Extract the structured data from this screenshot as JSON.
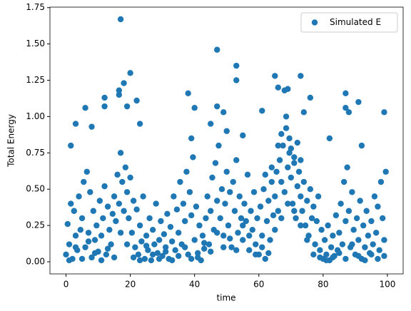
{
  "chart_data": {
    "type": "scatter",
    "xlabel": "time",
    "ylabel": "Total Energy",
    "xlim": [
      -5,
      104.9
    ],
    "ylim": [
      -0.0835,
      1.7535
    ],
    "xticks": [
      0,
      20,
      40,
      60,
      80,
      100
    ],
    "yticks": [
      {
        "value": 0,
        "label": "0.00"
      },
      {
        "value": 0.25,
        "label": "0.25"
      },
      {
        "value": 0.5,
        "label": "0.50"
      },
      {
        "value": 0.75,
        "label": "0.75"
      },
      {
        "value": 1,
        "label": "1.00"
      },
      {
        "value": 1.25,
        "label": "1.25"
      },
      {
        "value": 1.5,
        "label": "1.50"
      },
      {
        "value": 1.75,
        "label": "1.75"
      }
    ],
    "legend": "upper right",
    "series": [
      {
        "name": "Simulated E",
        "color": "#1f77b4",
        "x": [
          0,
          0.5,
          1,
          1.5,
          2,
          2.5,
          3,
          3.5,
          4,
          4.5,
          5,
          5.5,
          6,
          6.5,
          7,
          7.5,
          8,
          8.5,
          9,
          9.5,
          10,
          10.5,
          11,
          11.5,
          12,
          12.5,
          13,
          13.5,
          14,
          14.5,
          15,
          15.5,
          16,
          16.5,
          17,
          17.5,
          18,
          18.5,
          19,
          19.5,
          20,
          20.5,
          21,
          21.5,
          22,
          22.5,
          23,
          23.5,
          24,
          24.5,
          25,
          25.5,
          26,
          26.5,
          27,
          27.5,
          28,
          28.5,
          29,
          29.5,
          30,
          30.5,
          31,
          31.5,
          32,
          32.5,
          33,
          33.5,
          34,
          34.5,
          35,
          35.5,
          36,
          36.5,
          37,
          37.5,
          38,
          38.5,
          39,
          39.5,
          40,
          40.5,
          41,
          41.5,
          42,
          42.5,
          43,
          43.5,
          44,
          44.5,
          45,
          45.5,
          46,
          46.5,
          47,
          47.5,
          48,
          48.5,
          49,
          49.5,
          50,
          50.5,
          51,
          51.5,
          52,
          52.5,
          53,
          53.5,
          54,
          54.5,
          55,
          55.5,
          56,
          56.5,
          57,
          57.5,
          58,
          58.5,
          59,
          59.5,
          60,
          60.5,
          61,
          61.5,
          62,
          62.5,
          63,
          63.5,
          64,
          64.5,
          65,
          65.5,
          66,
          66.5,
          67,
          67.5,
          68,
          68.5,
          69,
          69.5,
          70,
          70.5,
          71,
          71.5,
          72,
          72.5,
          73,
          73.5,
          74,
          74.5,
          75,
          75.5,
          76,
          76.5,
          77,
          77.5,
          78,
          78.5,
          79,
          79.5,
          80,
          80.5,
          81,
          81.5,
          82,
          82.5,
          83,
          83.5,
          84,
          84.5,
          85,
          85.5,
          86,
          86.5,
          87,
          87.5,
          88,
          88.5,
          89,
          89.5,
          90,
          90.5,
          91,
          91.5,
          92,
          92.5,
          93,
          93.5,
          94,
          94.5,
          95,
          95.5,
          96,
          96.5,
          97,
          97.5,
          98,
          98.5,
          99,
          99.5,
          17,
          47,
          53,
          53,
          20,
          18,
          16.5,
          16.5,
          73,
          65,
          66,
          69,
          68,
          76,
          74,
          12,
          12,
          19,
          22,
          6,
          38,
          40,
          47,
          49,
          61,
          87,
          87,
          91,
          88,
          99,
          3,
          23,
          45,
          50,
          55,
          82,
          92,
          8,
          1.5,
          39,
          1,
          3,
          5,
          7,
          9,
          11,
          13,
          15,
          17,
          19,
          21,
          23,
          25,
          27,
          29,
          31,
          33,
          35,
          37,
          39,
          41,
          43,
          45,
          47,
          49,
          51,
          53,
          55,
          57,
          59,
          61,
          63,
          65,
          67,
          69,
          71,
          73,
          75,
          77,
          79,
          81,
          83,
          85,
          87,
          89,
          91,
          93,
          95,
          97,
          99,
          68.5,
          69.5,
          70,
          71,
          72,
          67,
          66,
          73,
          64,
          62
        ],
        "values": [
          0.05,
          0.26,
          0.12,
          0.4,
          0.02,
          0.35,
          0.18,
          0.08,
          0.45,
          0.22,
          0.3,
          0.55,
          0.1,
          0.62,
          0.2,
          0.48,
          0.03,
          0.35,
          0.15,
          0.25,
          0.07,
          0.42,
          0.18,
          0.3,
          0.52,
          0.05,
          0.38,
          0.22,
          0.12,
          0.33,
          0.45,
          0.28,
          0.6,
          0.4,
          0.75,
          0.55,
          0.35,
          0.65,
          0.48,
          0.3,
          0.58,
          0.2,
          0.42,
          0.1,
          0.36,
          0.05,
          0.25,
          0.14,
          0.45,
          0.02,
          0.18,
          0.08,
          0.3,
          0.01,
          0.22,
          0.12,
          0.4,
          0.06,
          0.15,
          0.28,
          0.04,
          0.19,
          0.1,
          0.33,
          0.02,
          0.24,
          0.14,
          0.45,
          0.08,
          0.36,
          0.2,
          0.55,
          0.12,
          0.4,
          0.28,
          0.62,
          0.05,
          0.48,
          0.32,
          0.72,
          0.15,
          0.38,
          0.06,
          0.25,
          0.01,
          0.18,
          0.09,
          0.3,
          0.45,
          0.12,
          0.35,
          0.58,
          0.22,
          0.68,
          0.42,
          0.8,
          0.3,
          0.5,
          0.18,
          0.4,
          0.62,
          0.25,
          0.48,
          0.1,
          0.55,
          0.35,
          0.7,
          0.2,
          0.45,
          0.3,
          0.15,
          0.4,
          0.28,
          0.6,
          0.08,
          0.35,
          0.22,
          0.48,
          0.12,
          0.3,
          0.05,
          0.38,
          0.18,
          0.5,
          0.02,
          0.28,
          0.42,
          0.15,
          0.55,
          0.32,
          0.45,
          0.62,
          0.35,
          0.7,
          0.55,
          0.8,
          0.48,
          0.92,
          0.65,
          0.75,
          0.58,
          0.4,
          0.68,
          0.3,
          0.52,
          0.62,
          0.45,
          0.35,
          0.55,
          0.25,
          0.42,
          0.18,
          0.5,
          0.3,
          0.38,
          0.12,
          0.28,
          0.45,
          0.08,
          0.22,
          0.02,
          0.15,
          0.05,
          0.25,
          0.01,
          0.1,
          0.18,
          0.04,
          0.32,
          0.08,
          0.2,
          0.4,
          0.12,
          0.55,
          0.28,
          0.65,
          0.35,
          0.1,
          0.48,
          0.22,
          0.05,
          0.3,
          0.15,
          0.42,
          0.02,
          0.25,
          0.1,
          0.35,
          0.18,
          0.06,
          0.28,
          0.12,
          0.45,
          0.2,
          0.38,
          0.08,
          0.55,
          0.3,
          0.15,
          0.62,
          1.67,
          1.46,
          1.35,
          1.25,
          1.3,
          1.23,
          1.18,
          1.15,
          1.28,
          1.28,
          1.2,
          1.19,
          1.18,
          1.13,
          1.03,
          1.13,
          1.07,
          1.07,
          1.11,
          1.06,
          1.16,
          1.06,
          1.07,
          1.03,
          1.04,
          1.16,
          1.06,
          1.1,
          1.03,
          1.03,
          0.95,
          0.95,
          0.95,
          0.9,
          0.87,
          0.85,
          0.8,
          0.93,
          0.8,
          0.85,
          0.01,
          0.1,
          0.02,
          0.14,
          0.06,
          0.01,
          0.09,
          0.03,
          0.2,
          0.12,
          0.03,
          0.01,
          0.11,
          0.05,
          0.02,
          0.07,
          0.01,
          0.04,
          0.1,
          0.02,
          0.03,
          0.13,
          0.07,
          0.2,
          0.1,
          0.16,
          0.08,
          0.25,
          0.18,
          0.05,
          0.1,
          0.06,
          0.22,
          0.3,
          0.4,
          0.35,
          0.25,
          0.15,
          0.05,
          0.03,
          0.01,
          0.03,
          0.06,
          0.02,
          0.12,
          0.04,
          0.01,
          0.05,
          0.02,
          0.04,
          1.0,
          0.85,
          0.78,
          0.72,
          0.82,
          0.88,
          0.8,
          0.7,
          0.65,
          0.6
        ]
      }
    ]
  }
}
